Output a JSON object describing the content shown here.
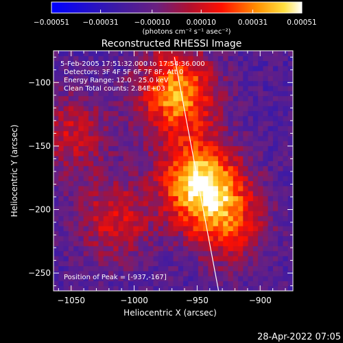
{
  "chart_data": {
    "type": "heatmap",
    "title": "Reconstructed RHESSI Image",
    "xlabel": "Heliocentric X (arcsec)",
    "ylabel": "Heliocentric Y (arcsec)",
    "xlim": [
      -1064,
      -874
    ],
    "ylim": [
      -264,
      -75
    ],
    "xticks": [
      {
        "v": -1050,
        "label": "−1050"
      },
      {
        "v": -1000,
        "label": "−1000"
      },
      {
        "v": -950,
        "label": "−950"
      },
      {
        "v": -900,
        "label": "−900"
      }
    ],
    "yticks": [
      {
        "v": -100,
        "label": "−100"
      },
      {
        "v": -150,
        "label": "−150"
      },
      {
        "v": -200,
        "label": "−200"
      },
      {
        "v": -250,
        "label": "−250"
      }
    ],
    "colorbar": {
      "range": [
        -0.00051,
        0.00051
      ],
      "units": "(photons cm⁻² s⁻¹ asec⁻²)",
      "ticks": [
        {
          "v": -0.00051,
          "label": "−0.00051"
        },
        {
          "v": -0.00031,
          "label": "−0.00031"
        },
        {
          "v": -0.0001,
          "label": "−0.00010"
        },
        {
          "v": 0.0001,
          "label": "0.00010"
        },
        {
          "v": 0.00031,
          "label": "0.00031"
        },
        {
          "v": 0.00051,
          "label": "0.00051"
        }
      ]
    },
    "sources": [
      {
        "x": -948,
        "y": -178,
        "strength": 1.0
      },
      {
        "x": -966,
        "y": -108,
        "strength": 0.85
      },
      {
        "x": -925,
        "y": -210,
        "strength": 0.55
      },
      {
        "x": -1015,
        "y": -208,
        "strength": 0.45
      },
      {
        "x": -1050,
        "y": -140,
        "strength": 0.4
      }
    ],
    "limb_line": [
      {
        "x": -968,
        "y": -80
      },
      {
        "x": -933,
        "y": -264
      }
    ],
    "peak": {
      "x": -937,
      "y": -167
    }
  },
  "annotations": {
    "time_range": "5-Feb-2005 17:51:32.000 to 17:54:36.000",
    "detectors": "Detectors: 3F 4F 5F 6F 7F 8F, Att 0",
    "energy": "Energy Range: 12.0 - 25.0 keV",
    "clean": "Clean    Total counts: 2.84E+03",
    "peak_label": "Position of Peak = [-937,-167]"
  },
  "timestamp": "28-Apr-2022 07:05"
}
